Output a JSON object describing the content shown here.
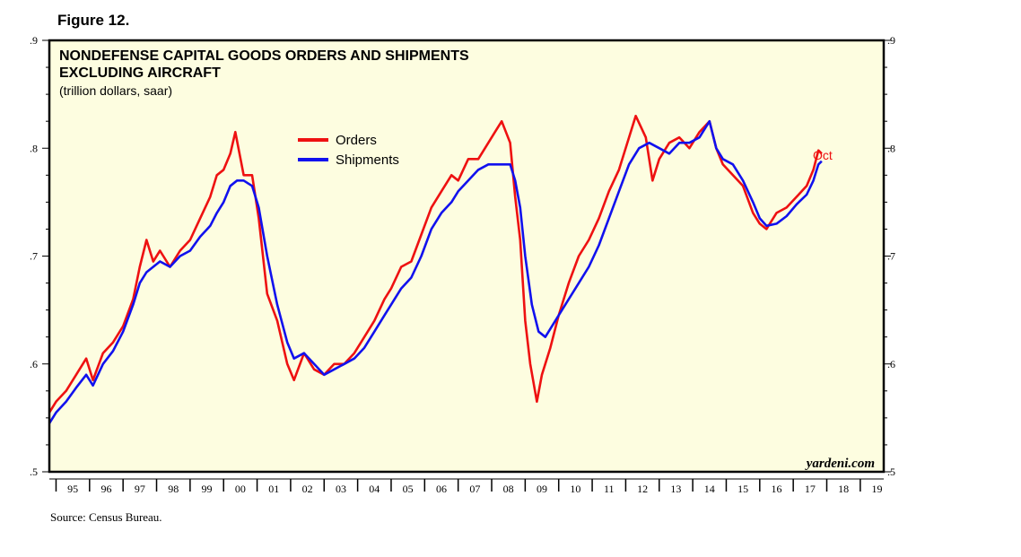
{
  "figure_label": "Figure 12.",
  "source": "Source: Census Bureau.",
  "watermark": "yardeni.com",
  "colors": {
    "orders": "#ee1111",
    "shipments": "#1111ee",
    "plot_bg": "#fdfde0"
  },
  "chart_data": {
    "type": "line",
    "title": "NONDEFENSE CAPITAL GOODS ORDERS AND SHIPMENTS",
    "title_line2": "EXCLUDING AIRCRAFT",
    "subtitle": "(trillion dollars, saar)",
    "ylim": [
      0.5,
      0.9
    ],
    "yticks": [
      ".5",
      ".6",
      ".7",
      ".8",
      ".9"
    ],
    "xlim": [
      1994.8,
      2019.7
    ],
    "year_labels": [
      "95",
      "96",
      "97",
      "98",
      "99",
      "00",
      "01",
      "02",
      "03",
      "04",
      "05",
      "06",
      "07",
      "08",
      "09",
      "10",
      "11",
      "12",
      "13",
      "14",
      "15",
      "16",
      "17",
      "18",
      "19"
    ],
    "legend_position": "top-center",
    "end_annotation": "Oct",
    "series": [
      {
        "name": "Orders",
        "points": [
          [
            1994.8,
            0.555
          ],
          [
            1995.0,
            0.565
          ],
          [
            1995.3,
            0.575
          ],
          [
            1995.6,
            0.59
          ],
          [
            1995.9,
            0.605
          ],
          [
            1996.1,
            0.585
          ],
          [
            1996.4,
            0.61
          ],
          [
            1996.7,
            0.62
          ],
          [
            1997.0,
            0.635
          ],
          [
            1997.3,
            0.66
          ],
          [
            1997.5,
            0.69
          ],
          [
            1997.7,
            0.715
          ],
          [
            1997.9,
            0.695
          ],
          [
            1998.1,
            0.705
          ],
          [
            1998.4,
            0.69
          ],
          [
            1998.7,
            0.705
          ],
          [
            1999.0,
            0.715
          ],
          [
            1999.3,
            0.735
          ],
          [
            1999.6,
            0.755
          ],
          [
            1999.8,
            0.775
          ],
          [
            2000.0,
            0.78
          ],
          [
            2000.2,
            0.795
          ],
          [
            2000.35,
            0.815
          ],
          [
            2000.6,
            0.775
          ],
          [
            2000.85,
            0.775
          ],
          [
            2001.05,
            0.735
          ],
          [
            2001.3,
            0.665
          ],
          [
            2001.6,
            0.64
          ],
          [
            2001.9,
            0.6
          ],
          [
            2002.1,
            0.585
          ],
          [
            2002.4,
            0.61
          ],
          [
            2002.7,
            0.595
          ],
          [
            2003.0,
            0.59
          ],
          [
            2003.3,
            0.6
          ],
          [
            2003.6,
            0.6
          ],
          [
            2003.9,
            0.61
          ],
          [
            2004.2,
            0.625
          ],
          [
            2004.5,
            0.64
          ],
          [
            2004.8,
            0.66
          ],
          [
            2005.0,
            0.67
          ],
          [
            2005.3,
            0.69
          ],
          [
            2005.6,
            0.695
          ],
          [
            2005.9,
            0.72
          ],
          [
            2006.2,
            0.745
          ],
          [
            2006.5,
            0.76
          ],
          [
            2006.8,
            0.775
          ],
          [
            2007.0,
            0.77
          ],
          [
            2007.3,
            0.79
          ],
          [
            2007.6,
            0.79
          ],
          [
            2007.9,
            0.805
          ],
          [
            2008.1,
            0.815
          ],
          [
            2008.3,
            0.825
          ],
          [
            2008.55,
            0.805
          ],
          [
            2008.7,
            0.755
          ],
          [
            2008.85,
            0.715
          ],
          [
            2009.0,
            0.64
          ],
          [
            2009.15,
            0.6
          ],
          [
            2009.35,
            0.565
          ],
          [
            2009.5,
            0.59
          ],
          [
            2009.75,
            0.615
          ],
          [
            2010.0,
            0.645
          ],
          [
            2010.3,
            0.675
          ],
          [
            2010.6,
            0.7
          ],
          [
            2010.9,
            0.715
          ],
          [
            2011.2,
            0.735
          ],
          [
            2011.5,
            0.76
          ],
          [
            2011.8,
            0.78
          ],
          [
            2012.1,
            0.81
          ],
          [
            2012.3,
            0.83
          ],
          [
            2012.6,
            0.81
          ],
          [
            2012.8,
            0.77
          ],
          [
            2013.0,
            0.79
          ],
          [
            2013.3,
            0.805
          ],
          [
            2013.6,
            0.81
          ],
          [
            2013.9,
            0.8
          ],
          [
            2014.2,
            0.815
          ],
          [
            2014.5,
            0.825
          ],
          [
            2014.7,
            0.8
          ],
          [
            2014.9,
            0.785
          ],
          [
            2015.2,
            0.775
          ],
          [
            2015.5,
            0.765
          ],
          [
            2015.8,
            0.74
          ],
          [
            2016.0,
            0.73
          ],
          [
            2016.2,
            0.725
          ],
          [
            2016.5,
            0.74
          ],
          [
            2016.8,
            0.745
          ],
          [
            2017.1,
            0.755
          ],
          [
            2017.4,
            0.765
          ],
          [
            2017.6,
            0.78
          ],
          [
            2017.75,
            0.798
          ],
          [
            2017.85,
            0.795
          ]
        ]
      },
      {
        "name": "Shipments",
        "points": [
          [
            1994.8,
            0.545
          ],
          [
            1995.0,
            0.555
          ],
          [
            1995.3,
            0.565
          ],
          [
            1995.6,
            0.578
          ],
          [
            1995.9,
            0.59
          ],
          [
            1996.1,
            0.58
          ],
          [
            1996.4,
            0.6
          ],
          [
            1996.7,
            0.612
          ],
          [
            1997.0,
            0.63
          ],
          [
            1997.3,
            0.655
          ],
          [
            1997.5,
            0.675
          ],
          [
            1997.7,
            0.685
          ],
          [
            1997.9,
            0.69
          ],
          [
            1998.1,
            0.695
          ],
          [
            1998.4,
            0.69
          ],
          [
            1998.7,
            0.7
          ],
          [
            1999.0,
            0.705
          ],
          [
            1999.3,
            0.718
          ],
          [
            1999.6,
            0.728
          ],
          [
            1999.8,
            0.74
          ],
          [
            2000.0,
            0.75
          ],
          [
            2000.2,
            0.765
          ],
          [
            2000.4,
            0.77
          ],
          [
            2000.6,
            0.77
          ],
          [
            2000.85,
            0.765
          ],
          [
            2001.05,
            0.745
          ],
          [
            2001.3,
            0.7
          ],
          [
            2001.6,
            0.655
          ],
          [
            2001.9,
            0.62
          ],
          [
            2002.1,
            0.605
          ],
          [
            2002.4,
            0.61
          ],
          [
            2002.7,
            0.6
          ],
          [
            2003.0,
            0.59
          ],
          [
            2003.3,
            0.595
          ],
          [
            2003.6,
            0.6
          ],
          [
            2003.9,
            0.605
          ],
          [
            2004.2,
            0.615
          ],
          [
            2004.5,
            0.63
          ],
          [
            2004.8,
            0.645
          ],
          [
            2005.0,
            0.655
          ],
          [
            2005.3,
            0.67
          ],
          [
            2005.6,
            0.68
          ],
          [
            2005.9,
            0.7
          ],
          [
            2006.2,
            0.725
          ],
          [
            2006.5,
            0.74
          ],
          [
            2006.8,
            0.75
          ],
          [
            2007.0,
            0.76
          ],
          [
            2007.3,
            0.77
          ],
          [
            2007.6,
            0.78
          ],
          [
            2007.9,
            0.785
          ],
          [
            2008.1,
            0.785
          ],
          [
            2008.3,
            0.785
          ],
          [
            2008.55,
            0.785
          ],
          [
            2008.7,
            0.77
          ],
          [
            2008.85,
            0.745
          ],
          [
            2009.0,
            0.7
          ],
          [
            2009.2,
            0.655
          ],
          [
            2009.4,
            0.63
          ],
          [
            2009.6,
            0.625
          ],
          [
            2009.8,
            0.635
          ],
          [
            2010.0,
            0.645
          ],
          [
            2010.3,
            0.66
          ],
          [
            2010.6,
            0.675
          ],
          [
            2010.9,
            0.69
          ],
          [
            2011.2,
            0.71
          ],
          [
            2011.5,
            0.735
          ],
          [
            2011.8,
            0.76
          ],
          [
            2012.1,
            0.785
          ],
          [
            2012.4,
            0.8
          ],
          [
            2012.7,
            0.805
          ],
          [
            2013.0,
            0.8
          ],
          [
            2013.3,
            0.795
          ],
          [
            2013.6,
            0.805
          ],
          [
            2013.9,
            0.805
          ],
          [
            2014.2,
            0.81
          ],
          [
            2014.5,
            0.825
          ],
          [
            2014.7,
            0.8
          ],
          [
            2014.9,
            0.79
          ],
          [
            2015.2,
            0.785
          ],
          [
            2015.5,
            0.77
          ],
          [
            2015.8,
            0.75
          ],
          [
            2016.0,
            0.735
          ],
          [
            2016.2,
            0.728
          ],
          [
            2016.5,
            0.73
          ],
          [
            2016.8,
            0.737
          ],
          [
            2017.1,
            0.748
          ],
          [
            2017.4,
            0.757
          ],
          [
            2017.6,
            0.77
          ],
          [
            2017.75,
            0.785
          ],
          [
            2017.85,
            0.788
          ]
        ]
      }
    ]
  }
}
